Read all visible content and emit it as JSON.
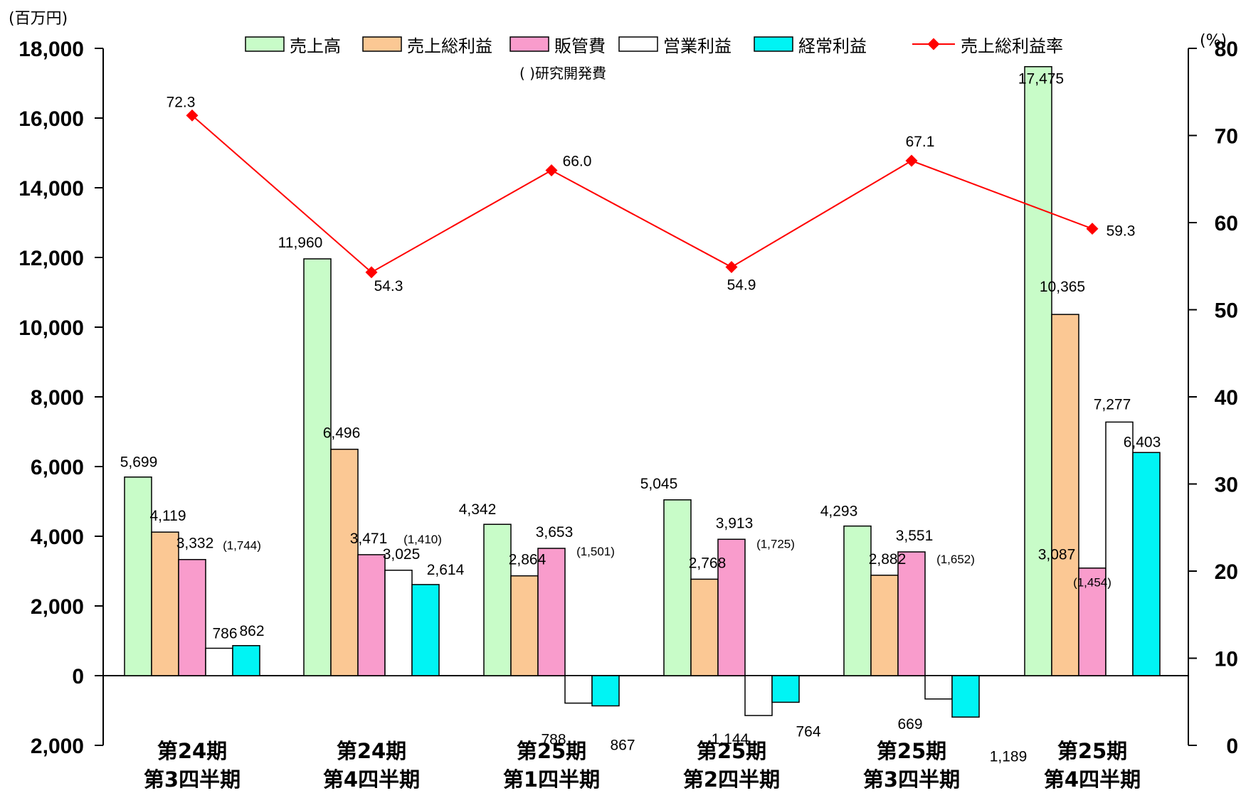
{
  "left_axis_unit": "(百万円)",
  "right_axis_unit": "(%)",
  "legend_note": "( )研究開発費",
  "colors": {
    "売上高": "#c8fcc8",
    "売上総利益": "#fbc894",
    "販管費": "#f99ccc",
    "営業利益": "#ffffff",
    "経常利益": "#00f4f4",
    "売上総利益率": "#ff0000"
  },
  "chart_data": {
    "type": "bar",
    "title": "",
    "xlabel": "",
    "ylabel": "(百万円)",
    "y2label": "(%)",
    "ylim": [
      -2000,
      18000
    ],
    "y2lim": [
      0,
      80
    ],
    "left_ticks": [
      {
        "value": 18000,
        "label": "18,000"
      },
      {
        "value": 16000,
        "label": "16,000"
      },
      {
        "value": 14000,
        "label": "14,000"
      },
      {
        "value": 12000,
        "label": "12,000"
      },
      {
        "value": 10000,
        "label": "10,000"
      },
      {
        "value": 8000,
        "label": "8,000"
      },
      {
        "value": 6000,
        "label": "6,000"
      },
      {
        "value": 4000,
        "label": "4,000"
      },
      {
        "value": 2000,
        "label": "2,000"
      },
      {
        "value": 0,
        "label": "0"
      },
      {
        "value": -2000,
        "label": "2,000"
      }
    ],
    "right_ticks": [
      {
        "value": 80,
        "label": "80"
      },
      {
        "value": 70,
        "label": "70"
      },
      {
        "value": 60,
        "label": "60"
      },
      {
        "value": 50,
        "label": "50"
      },
      {
        "value": 40,
        "label": "40"
      },
      {
        "value": 30,
        "label": "30"
      },
      {
        "value": 20,
        "label": "20"
      },
      {
        "value": 10,
        "label": "10"
      },
      {
        "value": 0,
        "label": "0"
      }
    ],
    "categories": [
      [
        "第24期",
        "第3四半期"
      ],
      [
        "第24期",
        "第4四半期"
      ],
      [
        "第25期",
        "第1四半期"
      ],
      [
        "第25期",
        "第2四半期"
      ],
      [
        "第25期",
        "第3四半期"
      ],
      [
        "第25期",
        "第4四半期"
      ]
    ],
    "series": [
      {
        "name": "売上高",
        "values": [
          5699,
          11960,
          4342,
          5045,
          4293,
          17475
        ],
        "labels": [
          "5,699",
          "11,960",
          "4,342",
          "5,045",
          "4,293",
          "17,475"
        ]
      },
      {
        "name": "売上総利益",
        "values": [
          4119,
          6496,
          2864,
          2768,
          2882,
          10365
        ],
        "labels": [
          "4,119",
          "6,496",
          "2,864",
          "2,768",
          "2,882",
          "10,365"
        ]
      },
      {
        "name": "販管費",
        "values": [
          3332,
          3471,
          3653,
          3913,
          3551,
          3087
        ],
        "labels": [
          "3,332",
          "3,471",
          "3,653",
          "3,913",
          "3,551",
          "3,087"
        ]
      },
      {
        "name": "営業利益",
        "values": [
          786,
          3025,
          -788,
          -1144,
          -669,
          7277
        ],
        "labels": [
          "786",
          "3,025",
          "788",
          "1,144",
          "669",
          "7,277"
        ]
      },
      {
        "name": "経常利益",
        "values": [
          862,
          2614,
          -867,
          -764,
          -1189,
          6403
        ],
        "labels": [
          "862",
          "2,614",
          "867",
          "764",
          "1,189",
          "6,403"
        ]
      }
    ],
    "rd_expenses": [
      1744,
      1410,
      1501,
      1725,
      1652,
      1454
    ],
    "rd_labels": [
      "(1,744)",
      "(1,410)",
      "(1,501)",
      "(1,725)",
      "(1,652)",
      "(1,454)"
    ],
    "line_series": {
      "name": "売上総利益率",
      "axis": "right",
      "values": [
        72.3,
        54.3,
        66.0,
        54.9,
        67.1,
        59.3
      ],
      "labels": [
        "72.3",
        "54.3",
        "66.0",
        "54.9",
        "67.1",
        "59.3"
      ]
    },
    "grid": false,
    "legend": "top"
  }
}
